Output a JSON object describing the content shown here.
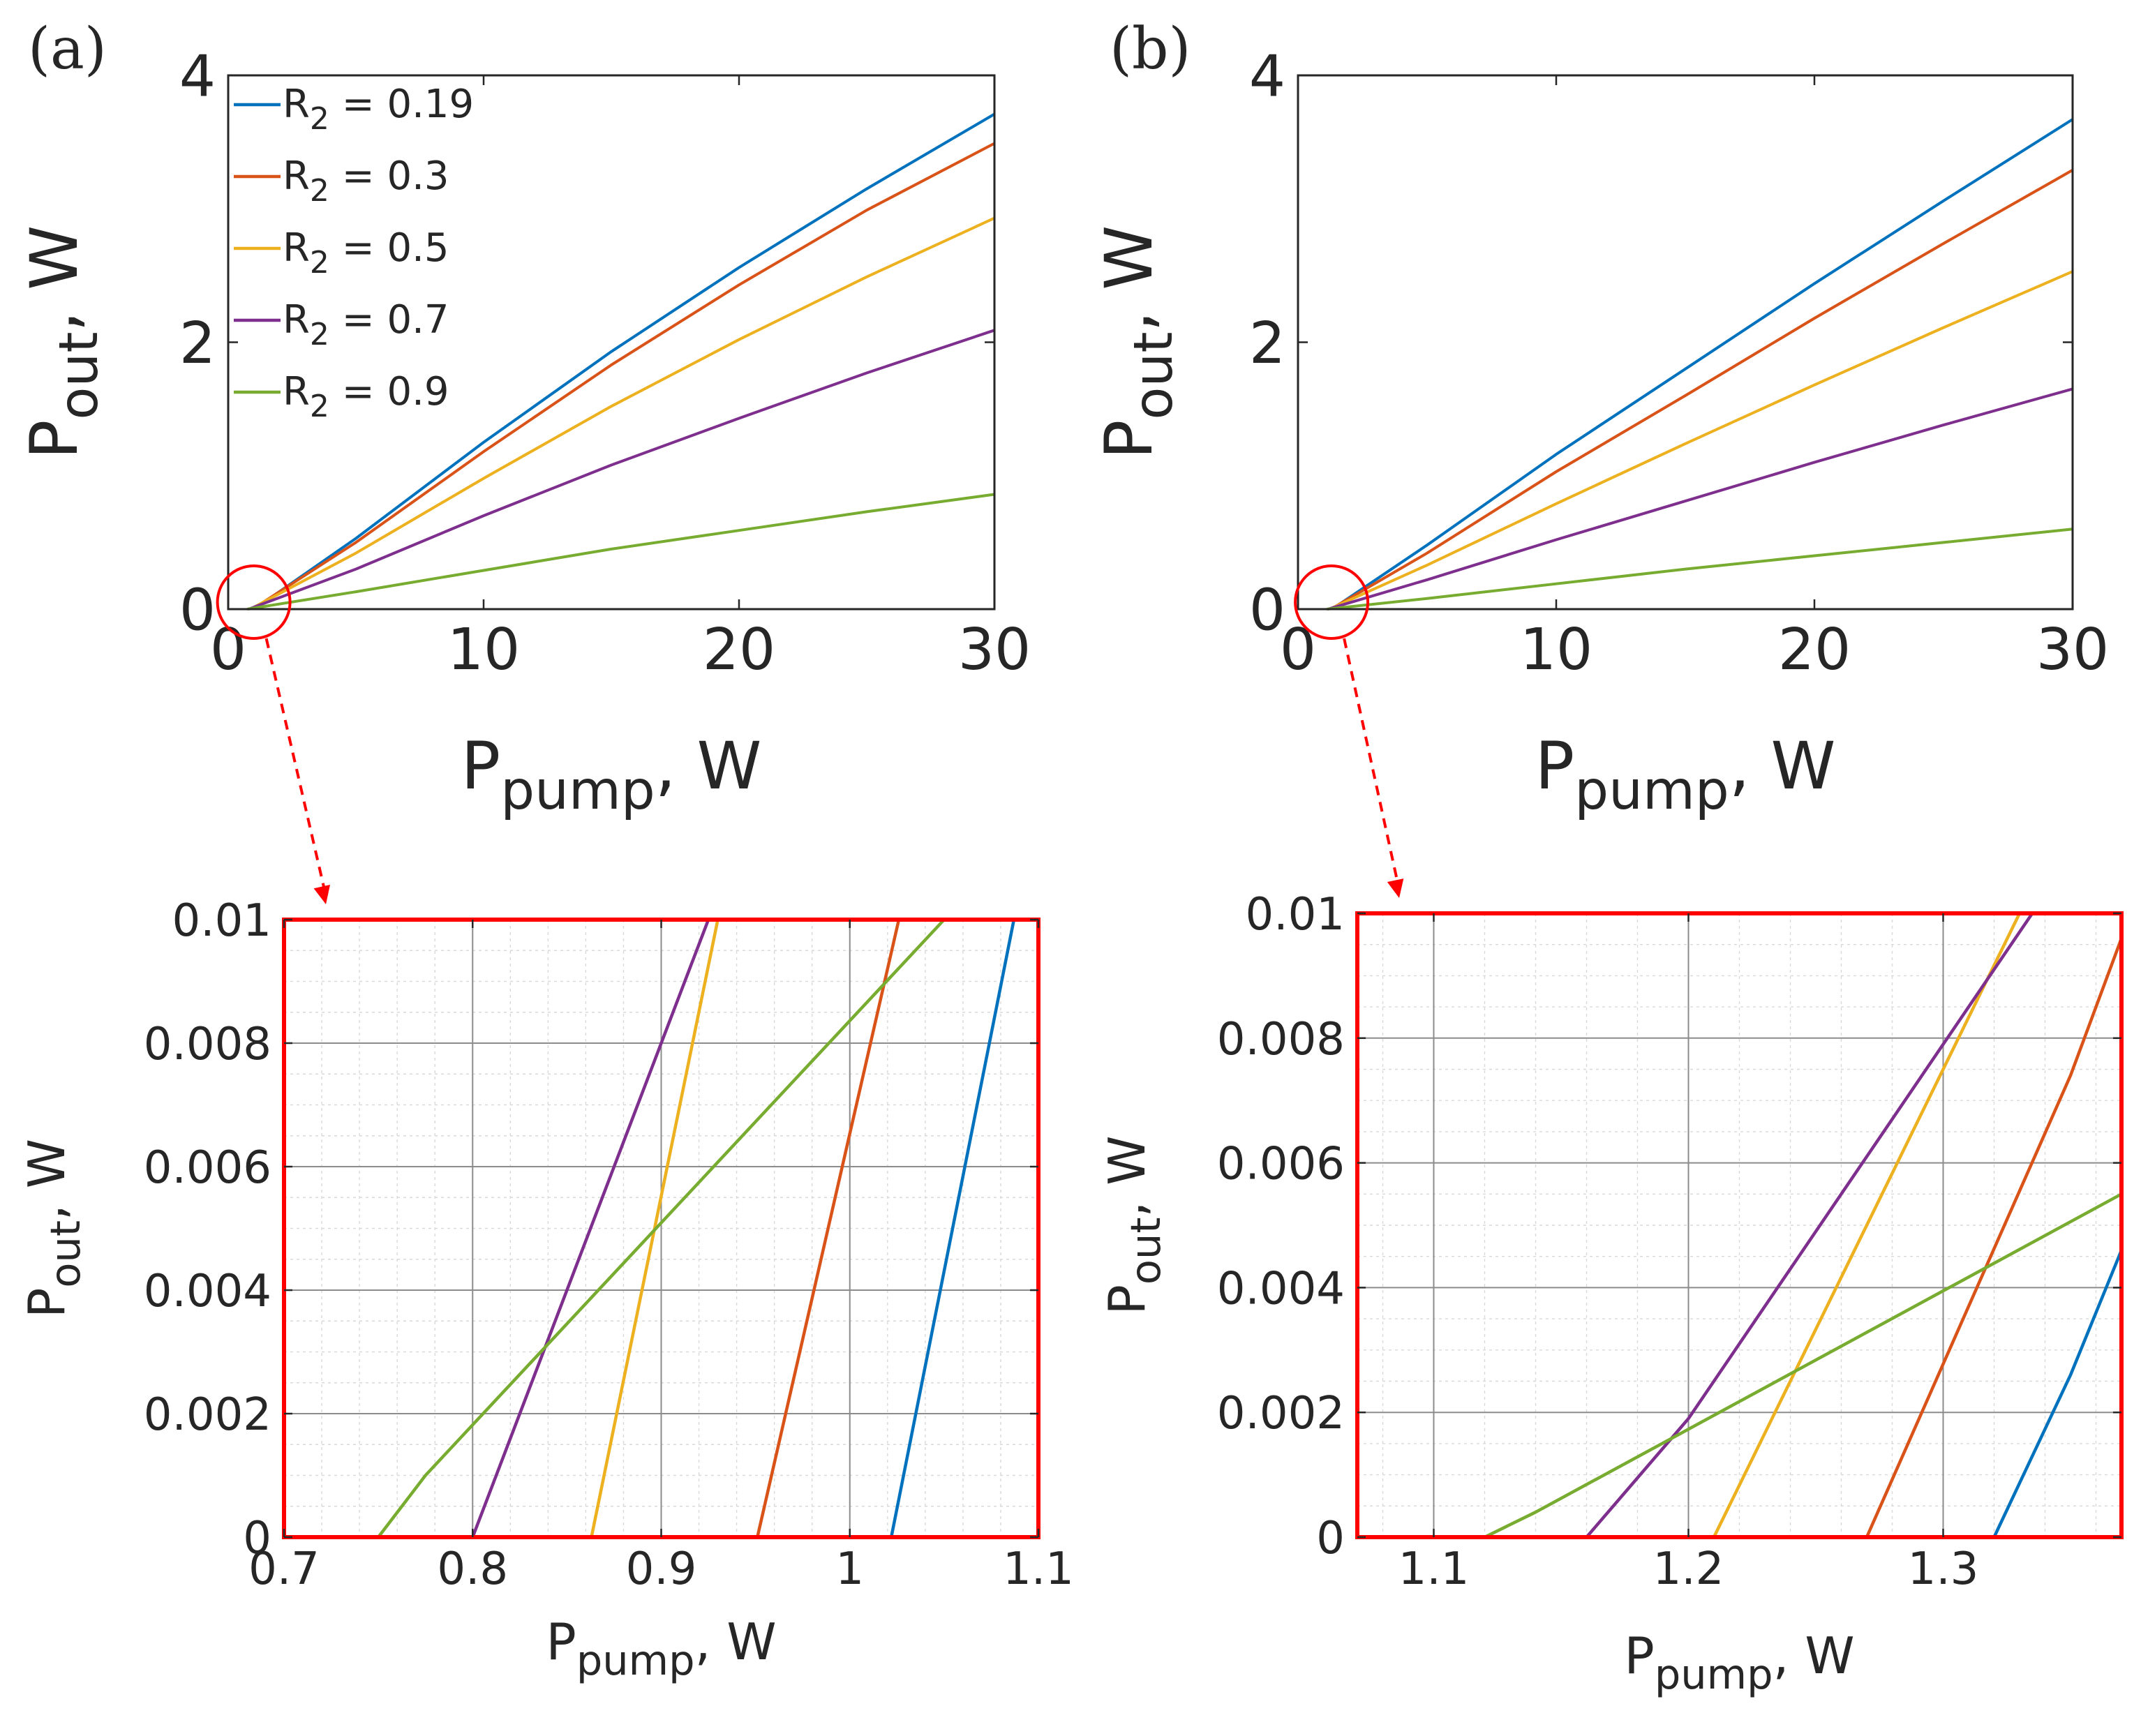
{
  "figure": {
    "panel_labels": [
      "(a)",
      "(b)"
    ],
    "colors": {
      "r2_019": "#0072BD",
      "r2_03": "#D95319",
      "r2_05": "#EDB120",
      "r2_07": "#7E2F8E",
      "r2_09": "#77AC30",
      "highlight": "#FF0000",
      "axis": "#262626",
      "grid_major": "#8C8C8C",
      "grid_minor": "#D9D9D9"
    }
  },
  "chart_data": [
    {
      "id": "a-main",
      "type": "line",
      "panel": "(a)",
      "xlabel": {
        "main": "P",
        "sub": "pump",
        "suffix": ", W"
      },
      "ylabel": {
        "main": "P",
        "sub": "out",
        "suffix": ", W"
      },
      "xlim": [
        0,
        30
      ],
      "ylim": [
        0,
        4
      ],
      "xticks": [
        0,
        10,
        20,
        30
      ],
      "yticks": [
        0,
        2,
        4
      ],
      "grid": false,
      "legend": "top-left",
      "series": [
        {
          "name": "R2 = 0.19",
          "label": {
            "main": "R",
            "sub": "2",
            "suffix": " = 0.19"
          },
          "color": "#0072BD",
          "x": [
            1.02,
            5,
            10,
            15,
            20,
            25,
            30
          ],
          "y": [
            0,
            0.53,
            1.25,
            1.93,
            2.56,
            3.15,
            3.71
          ]
        },
        {
          "name": "R2 = 0.3",
          "label": {
            "main": "R",
            "sub": "2",
            "suffix": " = 0.3"
          },
          "color": "#D95319",
          "x": [
            0.95,
            5,
            10,
            15,
            20,
            25,
            30
          ],
          "y": [
            0,
            0.5,
            1.18,
            1.83,
            2.43,
            2.99,
            3.49
          ]
        },
        {
          "name": "R2 = 0.5",
          "label": {
            "main": "R",
            "sub": "2",
            "suffix": " = 0.5"
          },
          "color": "#EDB120",
          "x": [
            0.86,
            5,
            10,
            15,
            20,
            25,
            30
          ],
          "y": [
            0,
            0.42,
            0.98,
            1.52,
            2.02,
            2.49,
            2.93
          ]
        },
        {
          "name": "R2 = 0.7",
          "label": {
            "main": "R",
            "sub": "2",
            "suffix": " = 0.7"
          },
          "color": "#7E2F8E",
          "x": [
            0.8,
            5,
            10,
            15,
            20,
            25,
            30
          ],
          "y": [
            0,
            0.3,
            0.7,
            1.08,
            1.43,
            1.77,
            2.09
          ]
        },
        {
          "name": "R2 = 0.9",
          "label": {
            "main": "R",
            "sub": "2",
            "suffix": " = 0.9"
          },
          "color": "#77AC30",
          "x": [
            0.75,
            5,
            10,
            15,
            20,
            25,
            30
          ],
          "y": [
            0,
            0.13,
            0.29,
            0.45,
            0.59,
            0.73,
            0.86
          ]
        }
      ],
      "annotation": {
        "zoom_circle_center": [
          1.0,
          0.0
        ]
      }
    },
    {
      "id": "b-main",
      "type": "line",
      "panel": "(b)",
      "xlabel": {
        "main": "P",
        "sub": "pump",
        "suffix": ", W"
      },
      "ylabel": {
        "main": "P",
        "sub": "out",
        "suffix": ", W"
      },
      "xlim": [
        0,
        30
      ],
      "ylim": [
        0,
        4
      ],
      "xticks": [
        0,
        10,
        20,
        30
      ],
      "yticks": [
        0,
        2,
        4
      ],
      "grid": false,
      "series": [
        {
          "name": "R2 = 0.19",
          "color": "#0072BD",
          "x": [
            1.32,
            5,
            10,
            15,
            20,
            25,
            30
          ],
          "y": [
            0,
            0.48,
            1.16,
            1.8,
            2.44,
            3.06,
            3.67
          ]
        },
        {
          "name": "R2 = 0.3",
          "color": "#D95319",
          "x": [
            1.27,
            5,
            10,
            15,
            20,
            25,
            30
          ],
          "y": [
            0,
            0.42,
            1.03,
            1.6,
            2.18,
            2.74,
            3.29
          ]
        },
        {
          "name": "R2 = 0.5",
          "color": "#EDB120",
          "x": [
            1.21,
            5,
            10,
            15,
            20,
            25,
            30
          ],
          "y": [
            0,
            0.33,
            0.79,
            1.24,
            1.68,
            2.11,
            2.53
          ]
        },
        {
          "name": "R2 = 0.7",
          "color": "#7E2F8E",
          "x": [
            1.16,
            5,
            10,
            15,
            20,
            25,
            30
          ],
          "y": [
            0,
            0.22,
            0.52,
            0.81,
            1.1,
            1.38,
            1.65
          ]
        },
        {
          "name": "R2 = 0.9",
          "color": "#77AC30",
          "x": [
            1.12,
            5,
            10,
            15,
            20,
            25,
            30
          ],
          "y": [
            0,
            0.08,
            0.19,
            0.3,
            0.4,
            0.5,
            0.6
          ]
        }
      ],
      "annotation": {
        "zoom_circle_center": [
          1.3,
          0.0
        ]
      }
    },
    {
      "id": "a-zoom",
      "type": "line",
      "panel": "(a)",
      "xlabel": {
        "main": "P",
        "sub": "pump",
        "suffix": ", W"
      },
      "ylabel": {
        "main": "P",
        "sub": "out",
        "suffix": ", W"
      },
      "xlim": [
        0.7,
        1.1
      ],
      "ylim": [
        0,
        0.01
      ],
      "xticks": [
        0.7,
        0.8,
        0.9,
        1,
        1.1
      ],
      "xtick_labels": [
        "0.7",
        "0.8",
        "0.9",
        "1",
        "1.1"
      ],
      "yticks": [
        0,
        0.002,
        0.004,
        0.006,
        0.008,
        0.01
      ],
      "ytick_labels": [
        "0",
        "0.002",
        "0.004",
        "0.006",
        "0.008",
        "0.01"
      ],
      "xminor": 0.02,
      "yminor": 0.0005,
      "grid": true,
      "series": [
        {
          "name": "R2 = 0.19",
          "color": "#0072BD",
          "x": [
            0.7,
            1.022,
            1.087
          ],
          "y": [
            0,
            0,
            0.01
          ]
        },
        {
          "name": "R2 = 0.3",
          "color": "#D95319",
          "x": [
            0.7,
            0.951,
            1.026
          ],
          "y": [
            0,
            0,
            0.01
          ]
        },
        {
          "name": "R2 = 0.5",
          "color": "#EDB120",
          "x": [
            0.7,
            0.863,
            0.93
          ],
          "y": [
            0,
            0,
            0.01
          ]
        },
        {
          "name": "R2 = 0.7",
          "color": "#7E2F8E",
          "x": [
            0.7,
            0.8,
            0.925
          ],
          "y": [
            0,
            0,
            0.01
          ]
        },
        {
          "name": "R2 = 0.9",
          "color": "#77AC30",
          "x": [
            0.7,
            0.75,
            0.775,
            1.05
          ],
          "y": [
            0,
            0,
            0.001,
            0.01
          ]
        }
      ]
    },
    {
      "id": "b-zoom",
      "type": "line",
      "panel": "(b)",
      "xlabel": {
        "main": "P",
        "sub": "pump",
        "suffix": ", W"
      },
      "ylabel": {
        "main": "P",
        "sub": "out",
        "suffix": ", W"
      },
      "xlim": [
        1.07,
        1.37
      ],
      "ylim": [
        0,
        0.01
      ],
      "xticks": [
        1.1,
        1.2,
        1.3
      ],
      "xtick_labels": [
        "1.1",
        "1.2",
        "1.3"
      ],
      "yticks": [
        0,
        0.002,
        0.004,
        0.006,
        0.008,
        0.01
      ],
      "ytick_labels": [
        "0",
        "0.002",
        "0.004",
        "0.006",
        "0.008",
        "0.01"
      ],
      "xminor": 0.02,
      "yminor": 0.0005,
      "grid": true,
      "series": [
        {
          "name": "R2 = 0.19",
          "color": "#0072BD",
          "x": [
            1.07,
            1.32,
            1.35,
            1.37
          ],
          "y": [
            0,
            0,
            0.0026,
            0.0046
          ]
        },
        {
          "name": "R2 = 0.3",
          "color": "#D95319",
          "x": [
            1.07,
            1.27,
            1.35,
            1.37
          ],
          "y": [
            0,
            0,
            0.0074,
            0.0096
          ]
        },
        {
          "name": "R2 = 0.5",
          "color": "#EDB120",
          "x": [
            1.07,
            1.21,
            1.33
          ],
          "y": [
            0,
            0,
            0.01
          ]
        },
        {
          "name": "R2 = 0.7",
          "color": "#7E2F8E",
          "x": [
            1.07,
            1.16,
            1.2,
            1.335
          ],
          "y": [
            0,
            0,
            0.0019,
            0.01
          ]
        },
        {
          "name": "R2 = 0.9",
          "color": "#77AC30",
          "x": [
            1.07,
            1.12,
            1.14,
            1.37
          ],
          "y": [
            0,
            0,
            0.0004,
            0.0055
          ]
        }
      ]
    }
  ]
}
